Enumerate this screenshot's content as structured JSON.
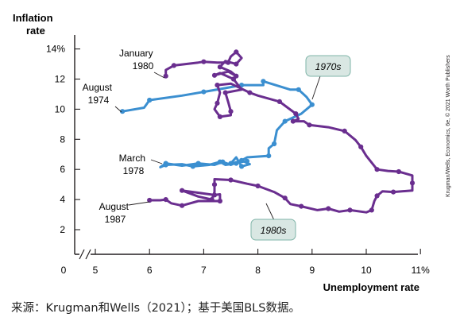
{
  "chart_data": {
    "type": "line",
    "ylabel": [
      "Inflation",
      "rate"
    ],
    "xlabel": "Unemployment rate",
    "xlim": [
      4.5,
      11
    ],
    "ylim": [
      0,
      14.4
    ],
    "x_ticks": [
      5,
      6,
      7,
      8,
      9,
      10,
      11
    ],
    "x_tick_labels": [
      "5",
      "6",
      "7",
      "8",
      "9",
      "10",
      "11%"
    ],
    "x_origin_label": "0",
    "y_ticks": [
      2,
      4,
      6,
      8,
      10,
      12,
      14
    ],
    "y_tick_labels": [
      "2",
      "4",
      "6",
      "8",
      "10",
      "12",
      "14%"
    ],
    "axis_break": true,
    "grid": false,
    "colors": {
      "1970s": "#3b8fd0",
      "1980s": "#6a2e8f",
      "badge_fill": "#d9e7e3",
      "badge_stroke": "#7fb4a8"
    },
    "series": [
      {
        "name": "1970s",
        "points": [
          [
            5.5,
            9.85
          ],
          [
            5.9,
            10.1
          ],
          [
            6.0,
            10.6
          ],
          [
            6.6,
            10.9
          ],
          [
            7.0,
            11.15
          ],
          [
            7.4,
            11.4
          ],
          [
            7.7,
            11.6
          ],
          [
            8.1,
            11.6
          ],
          [
            8.1,
            11.85
          ],
          [
            8.6,
            11.3
          ],
          [
            8.75,
            11.3
          ],
          [
            8.9,
            10.8
          ],
          [
            9.0,
            10.3
          ],
          [
            8.8,
            9.7
          ],
          [
            8.5,
            9.2
          ],
          [
            8.35,
            8.6
          ],
          [
            8.3,
            7.7
          ],
          [
            8.2,
            7.4
          ],
          [
            8.2,
            6.9
          ],
          [
            7.8,
            6.8
          ],
          [
            7.6,
            6.4
          ],
          [
            7.4,
            6.3
          ],
          [
            7.3,
            6.5
          ],
          [
            7.1,
            6.3
          ],
          [
            6.8,
            6.2
          ],
          [
            6.6,
            6.35
          ],
          [
            6.3,
            6.3
          ],
          [
            6.2,
            6.15
          ],
          [
            6.3,
            6.4
          ],
          [
            6.6,
            6.25
          ],
          [
            6.9,
            6.4
          ],
          [
            7.2,
            6.3
          ],
          [
            7.35,
            6.5
          ],
          [
            7.5,
            6.3
          ],
          [
            7.7,
            6.6
          ],
          [
            7.85,
            6.35
          ],
          [
            7.7,
            6.2
          ],
          [
            7.6,
            6.8
          ],
          [
            7.5,
            6.4
          ],
          [
            7.8,
            6.55
          ]
        ]
      },
      {
        "name": "1980s",
        "points": [
          [
            6.3,
            12.2
          ],
          [
            6.3,
            12.6
          ],
          [
            6.45,
            12.9
          ],
          [
            6.9,
            13.1
          ],
          [
            7.0,
            13.15
          ],
          [
            7.25,
            13.1
          ],
          [
            7.45,
            13.1
          ],
          [
            7.5,
            13.5
          ],
          [
            7.6,
            13.8
          ],
          [
            7.7,
            13.4
          ],
          [
            7.6,
            13.0
          ],
          [
            7.4,
            13.2
          ],
          [
            7.3,
            12.8
          ],
          [
            7.5,
            12.5
          ],
          [
            7.6,
            12.2
          ],
          [
            7.45,
            12.5
          ],
          [
            7.2,
            12.25
          ],
          [
            7.3,
            12.4
          ],
          [
            7.55,
            12.0
          ],
          [
            7.7,
            11.3
          ],
          [
            7.4,
            11.1
          ],
          [
            7.45,
            10.5
          ],
          [
            7.5,
            9.85
          ],
          [
            7.5,
            9.6
          ],
          [
            7.3,
            9.5
          ],
          [
            7.2,
            10.0
          ],
          [
            7.25,
            10.4
          ],
          [
            7.3,
            11.1
          ],
          [
            7.25,
            11.6
          ],
          [
            7.5,
            11.7
          ],
          [
            7.85,
            11.1
          ],
          [
            8.0,
            10.9
          ],
          [
            8.4,
            10.5
          ],
          [
            8.55,
            10.1
          ],
          [
            8.7,
            9.7
          ],
          [
            8.75,
            9.35
          ],
          [
            8.65,
            9.2
          ],
          [
            8.85,
            9.2
          ],
          [
            8.95,
            8.95
          ],
          [
            9.3,
            8.8
          ],
          [
            9.6,
            8.55
          ],
          [
            9.8,
            7.95
          ],
          [
            9.9,
            7.5
          ],
          [
            10.0,
            6.9
          ],
          [
            10.2,
            6.0
          ],
          [
            10.4,
            5.9
          ],
          [
            10.6,
            5.85
          ],
          [
            10.85,
            5.6
          ],
          [
            10.85,
            5.1
          ],
          [
            10.85,
            4.6
          ],
          [
            10.5,
            4.5
          ],
          [
            10.3,
            4.55
          ],
          [
            10.2,
            4.25
          ],
          [
            10.15,
            3.9
          ],
          [
            10.1,
            3.3
          ],
          [
            10.0,
            3.15
          ],
          [
            9.7,
            3.3
          ],
          [
            9.5,
            3.2
          ],
          [
            9.3,
            3.4
          ],
          [
            9.1,
            3.3
          ],
          [
            8.8,
            3.55
          ],
          [
            8.6,
            3.7
          ],
          [
            8.5,
            4.1
          ],
          [
            8.3,
            4.5
          ],
          [
            8.0,
            4.9
          ],
          [
            7.8,
            5.05
          ],
          [
            7.5,
            5.3
          ],
          [
            7.2,
            5.35
          ],
          [
            7.2,
            5.0
          ],
          [
            7.2,
            4.5
          ],
          [
            7.15,
            4.0
          ],
          [
            6.9,
            4.2
          ],
          [
            6.6,
            4.6
          ],
          [
            7.0,
            4.4
          ],
          [
            7.2,
            4.3
          ],
          [
            7.3,
            4.35
          ],
          [
            7.3,
            3.9
          ],
          [
            6.9,
            3.9
          ],
          [
            6.6,
            3.6
          ],
          [
            6.4,
            3.75
          ],
          [
            6.3,
            4.0
          ],
          [
            6.2,
            3.95
          ],
          [
            6.0,
            3.95
          ]
        ]
      }
    ],
    "annotations": [
      {
        "lines": [
          "January",
          "1980"
        ]
      },
      {
        "lines": [
          "August",
          "1974"
        ]
      },
      {
        "lines": [
          "March",
          "1978"
        ]
      },
      {
        "lines": [
          "August",
          "1987"
        ]
      }
    ],
    "series_badges": [
      "1970s",
      "1980s"
    ],
    "credit": "Krugman/Wells, Economics, 6e, © 2021 Worth Publishers"
  },
  "caption": "来源：Krugman和Wells（2021）；基于美国BLS数据。"
}
